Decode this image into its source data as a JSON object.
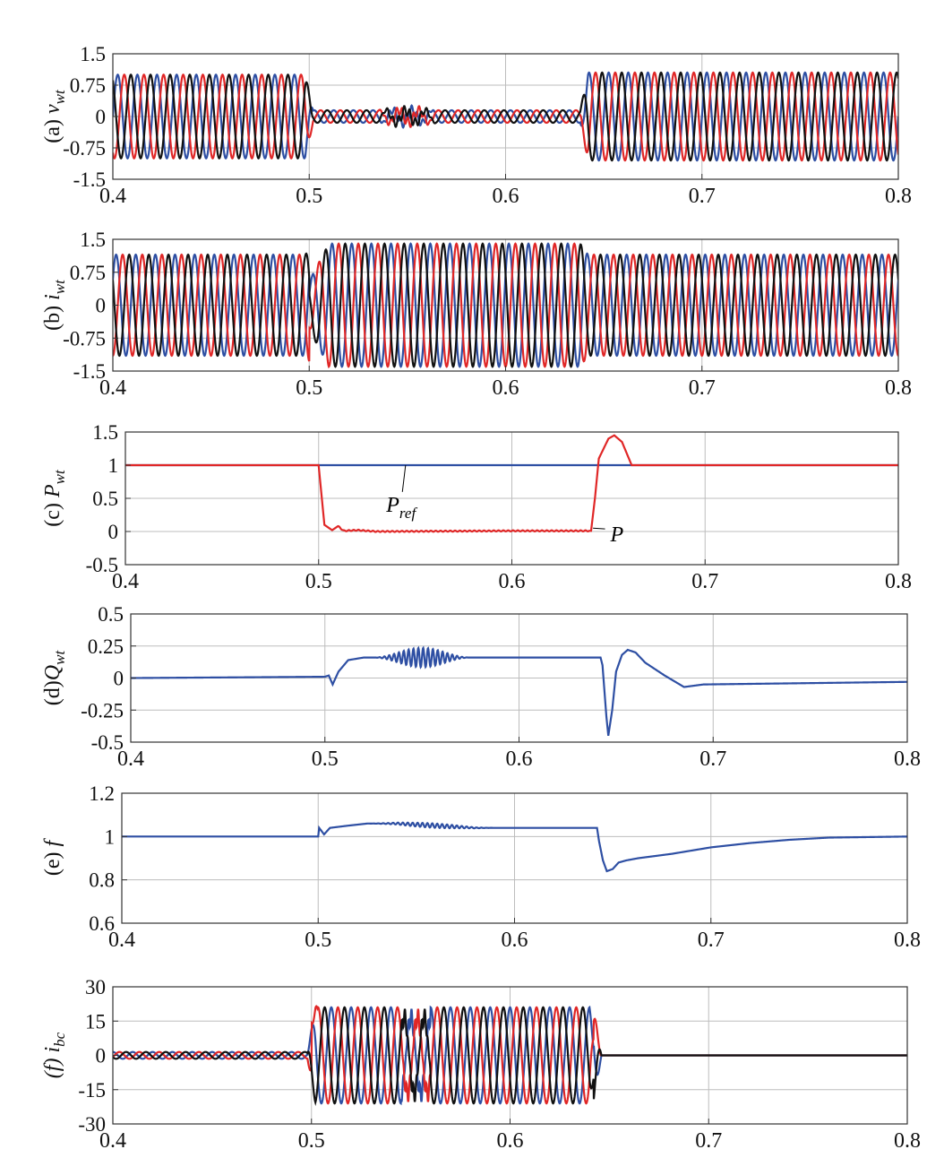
{
  "colors": {
    "phase_a": "#2e4fa3",
    "phase_b": "#e02727",
    "phase_c": "#111111",
    "grid": "#bdbdbd",
    "axis": "#333333"
  },
  "chart_data": [
    {
      "id": "a",
      "type": "line",
      "ylabel_prefix": "(a) ",
      "ylabel_main": "v",
      "ylabel_sub": "wt",
      "ylabel_italic_prefix": false,
      "xlim": [
        0.4,
        0.8
      ],
      "ylim": [
        -1.5,
        1.5
      ],
      "xticks": [
        0.4,
        0.5,
        0.6,
        0.7,
        0.8
      ],
      "xticklabels": [
        "0.4",
        "0.5",
        "0.6",
        "0.7",
        "0.8"
      ],
      "yticks": [
        1.5,
        0.75,
        0,
        -0.75,
        -1.5
      ],
      "yticklabels": [
        "1.5",
        "0.75",
        "0",
        "-0.75",
        "-1.5"
      ],
      "grid": true,
      "model": "three_phase_voltage",
      "segments": [
        {
          "x_range": [
            0.4,
            0.5
          ],
          "amplitude": 1.0,
          "cycles_per_unit": 100
        },
        {
          "x_range": [
            0.5,
            0.64
          ],
          "amplitude": 0.15,
          "cycles_per_unit": 100
        },
        {
          "x_range": [
            0.64,
            0.8
          ],
          "amplitude": 1.05,
          "cycles_per_unit": 100
        }
      ],
      "series": [
        {
          "phase_deg": 0
        },
        {
          "phase_deg": -120
        },
        {
          "phase_deg": 120
        }
      ]
    },
    {
      "id": "b",
      "type": "line",
      "ylabel_prefix": "(b) ",
      "ylabel_main": "i",
      "ylabel_sub": "wt",
      "ylabel_italic_prefix": false,
      "xlim": [
        0.4,
        0.8
      ],
      "ylim": [
        -1.5,
        1.5
      ],
      "xticks": [
        0.4,
        0.5,
        0.6,
        0.7,
        0.8
      ],
      "xticklabels": [
        "0.4",
        "0.5",
        "0.6",
        "0.7",
        "0.8"
      ],
      "yticks": [
        1.5,
        0.75,
        0,
        -0.75,
        -1.5
      ],
      "yticklabels": [
        "1.5",
        "0.75",
        "0",
        "-0.75",
        "-1.5"
      ],
      "grid": true,
      "model": "three_phase_current",
      "segments": [
        {
          "x_range": [
            0.4,
            0.5
          ],
          "amplitude": 1.15,
          "cycles_per_unit": 100
        },
        {
          "x_range": [
            0.5,
            0.64
          ],
          "amplitude": 1.4,
          "cycles_per_unit": 100
        },
        {
          "x_range": [
            0.64,
            0.8
          ],
          "amplitude": 1.15,
          "cycles_per_unit": 100
        }
      ],
      "series": [
        {
          "phase_deg": 30
        },
        {
          "phase_deg": -90
        },
        {
          "phase_deg": 150
        }
      ]
    },
    {
      "id": "c",
      "type": "line",
      "ylabel_prefix": "(c) ",
      "ylabel_main": "P",
      "ylabel_sub": "wt",
      "ylabel_italic_prefix": false,
      "xlim": [
        0.4,
        0.8
      ],
      "ylim": [
        -0.5,
        1.5
      ],
      "xticks": [
        0.4,
        0.5,
        0.6,
        0.7,
        0.8
      ],
      "xticklabels": [
        "0.4",
        "0.5",
        "0.6",
        "0.7",
        "0.8"
      ],
      "yticks": [
        1.5,
        1,
        0.5,
        0,
        -0.5
      ],
      "yticklabels": [
        "1.5",
        "1",
        "0.5",
        "0",
        "-0.5"
      ],
      "grid": true,
      "model": "active_power",
      "series": [
        {
          "name": "Pref",
          "label_main": "P",
          "label_sub": "ref",
          "color": "#2e4fa3",
          "points": [
            [
              0.4,
              1
            ],
            [
              0.8,
              1
            ]
          ]
        },
        {
          "name": "P",
          "label_main": "P",
          "label_sub": "",
          "color": "#e02727",
          "points": [
            [
              0.4,
              1
            ],
            [
              0.5,
              1
            ],
            [
              0.503,
              0.1
            ],
            [
              0.507,
              0.02
            ],
            [
              0.51,
              0.08
            ],
            [
              0.513,
              0.01
            ],
            [
              0.52,
              0.02
            ],
            [
              0.53,
              0.0
            ],
            [
              0.6,
              0.01
            ],
            [
              0.641,
              0.01
            ],
            [
              0.643,
              0.5
            ],
            [
              0.645,
              1.1
            ],
            [
              0.65,
              1.4
            ],
            [
              0.653,
              1.45
            ],
            [
              0.657,
              1.35
            ],
            [
              0.662,
              1.0
            ],
            [
              0.68,
              1.0
            ],
            [
              0.8,
              1.0
            ]
          ]
        }
      ],
      "annotations": [
        {
          "text_main": "P",
          "text_sub": "ref",
          "x": 0.535,
          "y": 0.3,
          "arrow_to": [
            0.545,
            1.0
          ]
        },
        {
          "text_main": "P",
          "text_sub": "",
          "x": 0.651,
          "y": -0.15,
          "arrow_to": [
            0.642,
            0.05
          ]
        }
      ]
    },
    {
      "id": "d",
      "type": "line",
      "ylabel_prefix": "(d)",
      "ylabel_main": "Q",
      "ylabel_sub": "wt",
      "ylabel_italic_prefix": false,
      "xlim": [
        0.4,
        0.8
      ],
      "ylim": [
        -0.5,
        0.5
      ],
      "xticks": [
        0.4,
        0.5,
        0.6,
        0.7,
        0.8
      ],
      "xticklabels": [
        "0.4",
        "0.5",
        "0.6",
        "0.7",
        "0.8"
      ],
      "yticks": [
        0.5,
        0.25,
        0,
        -0.25,
        -0.5
      ],
      "yticklabels": [
        "0.5",
        "0.25",
        "0",
        "-0.25",
        "-0.5"
      ],
      "grid": true,
      "model": "reactive_power",
      "series": [
        {
          "color": "#2e4fa3",
          "points": [
            [
              0.4,
              0.0
            ],
            [
              0.5,
              0.01
            ],
            [
              0.502,
              0.02
            ],
            [
              0.504,
              -0.05
            ],
            [
              0.507,
              0.05
            ],
            [
              0.512,
              0.14
            ],
            [
              0.52,
              0.16
            ],
            [
              0.56,
              0.16
            ],
            [
              0.6,
              0.16
            ],
            [
              0.642,
              0.16
            ],
            [
              0.643,
              0.1
            ],
            [
              0.644,
              -0.1
            ],
            [
              0.645,
              -0.3
            ],
            [
              0.646,
              -0.45
            ],
            [
              0.648,
              -0.25
            ],
            [
              0.65,
              0.05
            ],
            [
              0.653,
              0.18
            ],
            [
              0.656,
              0.22
            ],
            [
              0.66,
              0.2
            ],
            [
              0.665,
              0.12
            ],
            [
              0.675,
              0.02
            ],
            [
              0.685,
              -0.07
            ],
            [
              0.695,
              -0.05
            ],
            [
              0.8,
              -0.03
            ]
          ]
        }
      ],
      "oscillation": {
        "x_range": [
          0.525,
          0.575
        ],
        "peak_amplitude": 0.075,
        "cycles_per_unit": 400
      }
    },
    {
      "id": "e",
      "type": "line",
      "ylabel_prefix": "(e) ",
      "ylabel_main": "f",
      "ylabel_sub": "",
      "ylabel_italic_prefix": false,
      "xlim": [
        0.4,
        0.8
      ],
      "ylim": [
        0.6,
        1.2
      ],
      "xticks": [
        0.4,
        0.5,
        0.6,
        0.7,
        0.8
      ],
      "xticklabels": [
        "0.4",
        "0.5",
        "0.6",
        "0.7",
        "0.8"
      ],
      "yticks": [
        1.2,
        1,
        0.8,
        0.6
      ],
      "yticklabels": [
        "1.2",
        "1",
        "0.8",
        "0.6"
      ],
      "grid": true,
      "model": "frequency",
      "series": [
        {
          "color": "#2e4fa3",
          "points": [
            [
              0.4,
              1.0
            ],
            [
              0.5,
              1.0
            ],
            [
              0.5005,
              1.04
            ],
            [
              0.503,
              1.01
            ],
            [
              0.506,
              1.04
            ],
            [
              0.515,
              1.05
            ],
            [
              0.525,
              1.06
            ],
            [
              0.54,
              1.06
            ],
            [
              0.56,
              1.05
            ],
            [
              0.58,
              1.04
            ],
            [
              0.6,
              1.04
            ],
            [
              0.642,
              1.04
            ],
            [
              0.643,
              0.98
            ],
            [
              0.645,
              0.89
            ],
            [
              0.647,
              0.84
            ],
            [
              0.65,
              0.85
            ],
            [
              0.653,
              0.88
            ],
            [
              0.657,
              0.89
            ],
            [
              0.66,
              0.895
            ],
            [
              0.663,
              0.9
            ],
            [
              0.68,
              0.92
            ],
            [
              0.7,
              0.95
            ],
            [
              0.72,
              0.97
            ],
            [
              0.74,
              0.985
            ],
            [
              0.76,
              0.995
            ],
            [
              0.8,
              1.0
            ]
          ]
        }
      ],
      "oscillation": {
        "x_range": [
          0.525,
          0.59
        ],
        "peak_amplitude": 0.01,
        "cycles_per_unit": 400
      }
    },
    {
      "id": "f",
      "type": "line",
      "ylabel_prefix": "(f) ",
      "ylabel_main": "i",
      "ylabel_sub": "bc",
      "ylabel_italic_prefix": true,
      "xlim": [
        0.4,
        0.8
      ],
      "ylim": [
        -30,
        30
      ],
      "xticks": [
        0.4,
        0.5,
        0.6,
        0.7,
        0.8
      ],
      "xticklabels": [
        "0.4",
        "0.5",
        "0.6",
        "0.7",
        "0.8"
      ],
      "yticks": [
        30,
        15,
        0,
        -15,
        -30
      ],
      "yticklabels": [
        "30",
        "15",
        "0",
        "-15",
        "-30"
      ],
      "grid": true,
      "model": "three_phase_current",
      "segments": [
        {
          "x_range": [
            0.4,
            0.5
          ],
          "amplitude": 1.5,
          "cycles_per_unit": 100
        },
        {
          "x_range": [
            0.5,
            0.642
          ],
          "amplitude": 21,
          "cycles_per_unit": 100
        },
        {
          "x_range": [
            0.642,
            0.8
          ],
          "amplitude": 0.0,
          "cycles_per_unit": 100
        }
      ],
      "series": [
        {
          "phase_deg": 90
        },
        {
          "phase_deg": -30
        },
        {
          "phase_deg": 210
        }
      ]
    }
  ]
}
